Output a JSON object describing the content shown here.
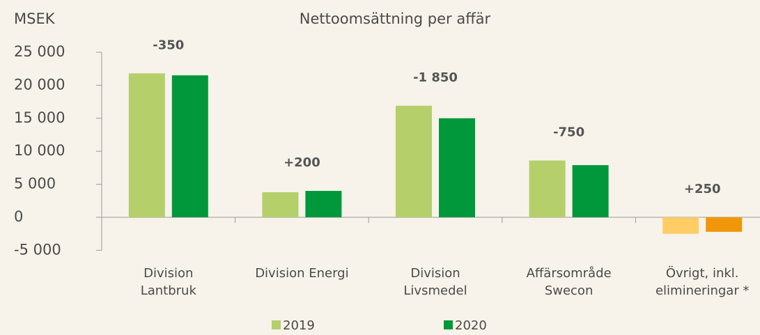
{
  "chart_data": {
    "type": "bar",
    "title": "Nettoomsättning per affär",
    "y_axis_label": "MSEK",
    "categories": [
      [
        "Division",
        "Lantbruk"
      ],
      [
        "Division Energi"
      ],
      [
        "Division",
        "Livsmedel"
      ],
      [
        "Affärsområde",
        "Swecon"
      ],
      [
        "Övrigt, inkl.",
        "elimineringar *"
      ]
    ],
    "series": [
      {
        "name": "2019",
        "color": "#b5cf6b",
        "colors": [
          "#b5cf6b",
          "#b5cf6b",
          "#b5cf6b",
          "#b5cf6b",
          "#ffcc66"
        ],
        "values": [
          21800,
          3800,
          16900,
          8600,
          -2500
        ]
      },
      {
        "name": "2020",
        "color": "#00983a",
        "colors": [
          "#00983a",
          "#00983a",
          "#00983a",
          "#00983a",
          "#f0960a"
        ],
        "values": [
          21500,
          4000,
          15000,
          7900,
          -2200
        ]
      }
    ],
    "annotations": [
      "-350",
      "+200",
      "-1 850",
      "-750",
      "+250"
    ],
    "ylim": [
      -5000,
      25000
    ],
    "yticks": [
      {
        "value": -5000,
        "label": "-5 000"
      },
      0,
      {
        "value": 5000,
        "label": "5 000"
      },
      {
        "value": 10000,
        "label": "10 000"
      },
      {
        "value": 15000,
        "label": "15 000"
      },
      {
        "value": 20000,
        "label": "20 000"
      },
      {
        "value": 25000,
        "label": "25 000"
      }
    ],
    "grid": false,
    "legend": "bottom"
  }
}
